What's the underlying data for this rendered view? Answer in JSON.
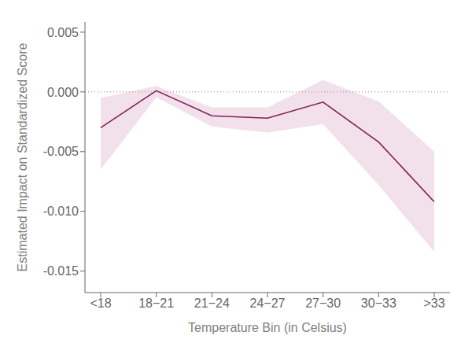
{
  "chart_data": {
    "type": "line",
    "categories": [
      "<18",
      "18−21",
      "21−24",
      "24−27",
      "27−30",
      "30−33",
      ">33"
    ],
    "values": [
      -0.003,
      0.0001,
      -0.002,
      -0.0022,
      -0.00085,
      -0.0042,
      -0.0092
    ],
    "color": "#822158",
    "band": {
      "lower": [
        -0.0065,
        -0.00045,
        -0.0029,
        -0.0034,
        -0.0027,
        -0.0078,
        -0.0134
      ],
      "upper": [
        -0.0005,
        0.0005,
        -0.0013,
        -0.0013,
        0.001,
        -0.0008,
        -0.005
      ],
      "color": "#e8c8d8"
    },
    "hline": {
      "y": 0.0,
      "color": "#b0a8b0",
      "line_style": "dotted"
    },
    "x_label": "Temperature Bin (in Celsius)",
    "y_label": "Estimated Impact on Standardized Score",
    "ylim": [
      -0.0168,
      0.00585
    ],
    "yticks": [
      {
        "value": -0.015,
        "label": "-0.015"
      },
      {
        "value": -0.01,
        "label": "-0.010"
      },
      {
        "value": -0.005,
        "label": "-0.005"
      },
      {
        "value": 0.0,
        "label": "0.000"
      },
      {
        "value": 0.005,
        "label": "0.005"
      }
    ],
    "grid": false
  }
}
